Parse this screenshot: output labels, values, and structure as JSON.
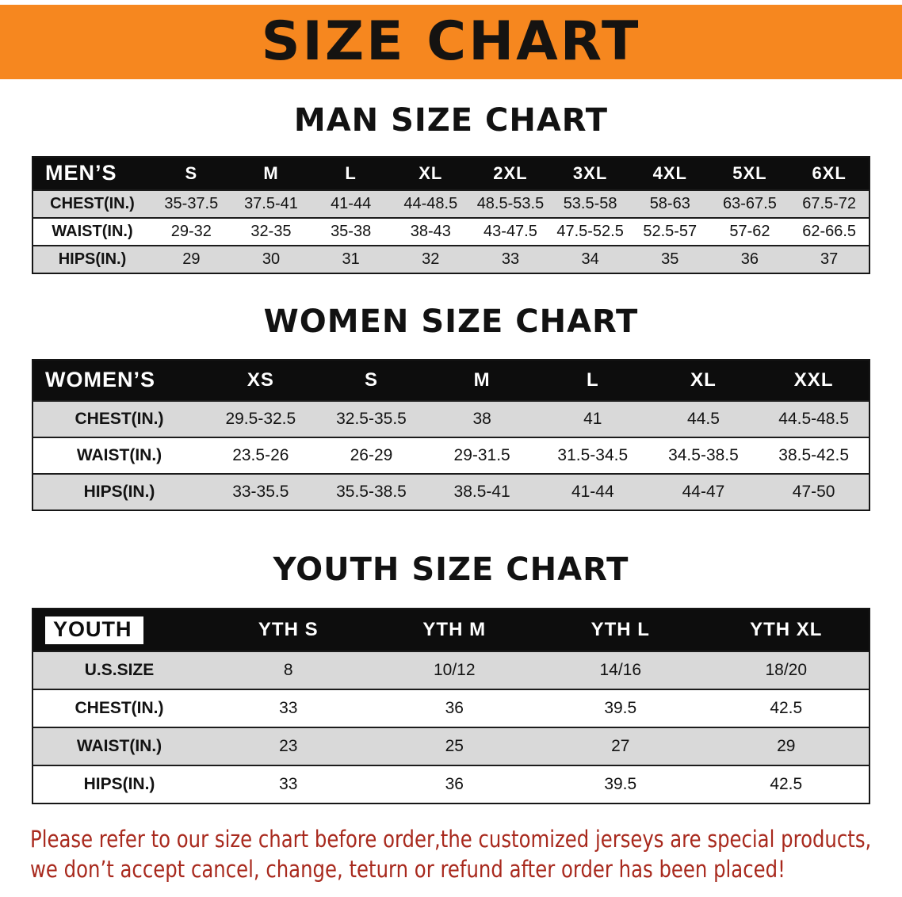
{
  "banner": {
    "title": "SIZE CHART"
  },
  "colors": {
    "banner_bg": "#F6871F",
    "header_bg": "#0D0D0D",
    "row_stripe": "#D9D9D9",
    "disclaimer_text": "#A8291D"
  },
  "sections": {
    "men": {
      "heading": "MAN SIZE CHART",
      "table": {
        "header": [
          "MEN’S",
          "S",
          "M",
          "L",
          "XL",
          "2XL",
          "3XL",
          "4XL",
          "5XL",
          "6XL"
        ],
        "rows": [
          {
            "label": "CHEST(IN.)",
            "values": [
              "35-37.5",
              "37.5-41",
              "41-44",
              "44-48.5",
              "48.5-53.5",
              "53.5-58",
              "58-63",
              "63-67.5",
              "67.5-72"
            ]
          },
          {
            "label": "WAIST(IN.)",
            "values": [
              "29-32",
              "32-35",
              "35-38",
              "38-43",
              "43-47.5",
              "47.5-52.5",
              "52.5-57",
              "57-62",
              "62-66.5"
            ]
          },
          {
            "label": "HIPS(IN.)",
            "values": [
              "29",
              "30",
              "31",
              "32",
              "33",
              "34",
              "35",
              "36",
              "37"
            ]
          }
        ]
      }
    },
    "women": {
      "heading": "WOMEN SIZE CHART",
      "table": {
        "header": [
          "WOMEN’S",
          "XS",
          "S",
          "M",
          "L",
          "XL",
          "XXL"
        ],
        "rows": [
          {
            "label": "CHEST(IN.)",
            "values": [
              "29.5-32.5",
              "32.5-35.5",
              "38",
              "41",
              "44.5",
              "44.5-48.5"
            ]
          },
          {
            "label": "WAIST(IN.)",
            "values": [
              "23.5-26",
              "26-29",
              "29-31.5",
              "31.5-34.5",
              "34.5-38.5",
              "38.5-42.5"
            ]
          },
          {
            "label": "HIPS(IN.)",
            "values": [
              "33-35.5",
              "35.5-38.5",
              "38.5-41",
              "41-44",
              "44-47",
              "47-50"
            ]
          }
        ]
      }
    },
    "youth": {
      "heading": "YOUTH SIZE CHART",
      "table": {
        "header": [
          "YOUTH",
          "YTH S",
          "YTH M",
          "YTH L",
          "YTH XL"
        ],
        "rows": [
          {
            "label": "U.S.SIZE",
            "values": [
              "8",
              "10/12",
              "14/16",
              "18/20"
            ]
          },
          {
            "label": "CHEST(IN.)",
            "values": [
              "33",
              "36",
              "39.5",
              "42.5"
            ]
          },
          {
            "label": "WAIST(IN.)",
            "values": [
              "23",
              "25",
              "27",
              "29"
            ]
          },
          {
            "label": "HIPS(IN.)",
            "values": [
              "33",
              "36",
              "39.5",
              "42.5"
            ]
          }
        ]
      }
    }
  },
  "disclaimer": {
    "line1": "Please refer to our size chart before order,the customized jerseys are special products,",
    "line2": "we don’t accept cancel, change, teturn or refund after order has been placed!"
  }
}
